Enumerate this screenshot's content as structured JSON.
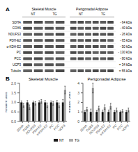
{
  "chart_data": [
    {
      "type": "blot",
      "annotations": [
        "A",
        "Skeletal Muscle",
        "Perigonadal Adipose",
        "NT",
        "TG",
        "NT",
        "TG",
        "- 64 kDa",
        "- 40 kDa",
        "- 26 kDa",
        "- 65 kDa",
        "- 50 kDa",
        "- 130 kDa",
        "- 80 kDa",
        "= 34 kDa",
        "= 55 kDa"
      ],
      "categories": [
        "SDHA",
        "COX6",
        "NDUFS3",
        "PDH-E2",
        "α-KDH-E2",
        "PC",
        "PCC",
        "UCP3",
        "Tubulin"
      ]
    },
    {
      "type": "bar",
      "title": "Skeletal Muscle",
      "y_label": "Relative units",
      "annotations": [
        "B"
      ],
      "categories": [
        "SDHA",
        "COX6",
        "NDUFS3",
        "PDH-E2",
        "α-KDH-E2",
        "PC",
        "PCC",
        "UCP3"
      ],
      "series": [
        {
          "name": "NT",
          "color": "#1a1a1a",
          "values": [
            1.0,
            1.0,
            1.0,
            1.0,
            1.0,
            1.0,
            1.0,
            1.0
          ],
          "errors": [
            0.08,
            0.1,
            0.07,
            0.09,
            0.1,
            0.08,
            0.1,
            0.15
          ]
        },
        {
          "name": "TG",
          "color": "#aaaaaa",
          "values": [
            0.85,
            0.75,
            0.95,
            1.05,
            0.85,
            0.95,
            0.85,
            1.65
          ],
          "errors": [
            0.1,
            0.12,
            0.09,
            0.1,
            0.12,
            0.1,
            0.12,
            0.2
          ]
        }
      ],
      "ylim": [
        0,
        2.0
      ],
      "yticks": [
        {
          "value": 0,
          "label": "0.0"
        },
        0.5,
        {
          "value": 1.0,
          "label": "1.0"
        },
        1.5,
        {
          "value": 2.0,
          "label": "2.0"
        }
      ],
      "grid": false
    },
    {
      "type": "bar",
      "title": "Perigonadal Adipose",
      "y_label": "Relative Units",
      "categories": [
        "SDHA",
        "COX6",
        "NDUFS3",
        "PDH-E2",
        "α-KDH-E2",
        "PC",
        "PCC",
        "UCP3"
      ],
      "series": [
        {
          "name": "NT",
          "color": "#1a1a1a",
          "values": [
            1.0,
            1.0,
            1.0,
            1.0,
            1.0,
            1.0,
            1.0,
            1.0
          ],
          "errors": [
            0.15,
            0.3,
            0.15,
            0.2,
            0.2,
            0.15,
            0.1,
            0.15
          ]
        },
        {
          "name": "TG",
          "color": "#aaaaaa",
          "values": [
            1.3,
            3.5,
            1.4,
            1.5,
            1.6,
            1.2,
            1.1,
            1.2
          ],
          "errors": [
            0.2,
            0.5,
            0.2,
            0.25,
            0.3,
            0.2,
            0.15,
            0.2
          ]
        }
      ],
      "ylim": [
        0,
        4.0
      ],
      "yticks": [
        0,
        1,
        2,
        3,
        4
      ],
      "grid": false,
      "legend": "bottom"
    }
  ]
}
